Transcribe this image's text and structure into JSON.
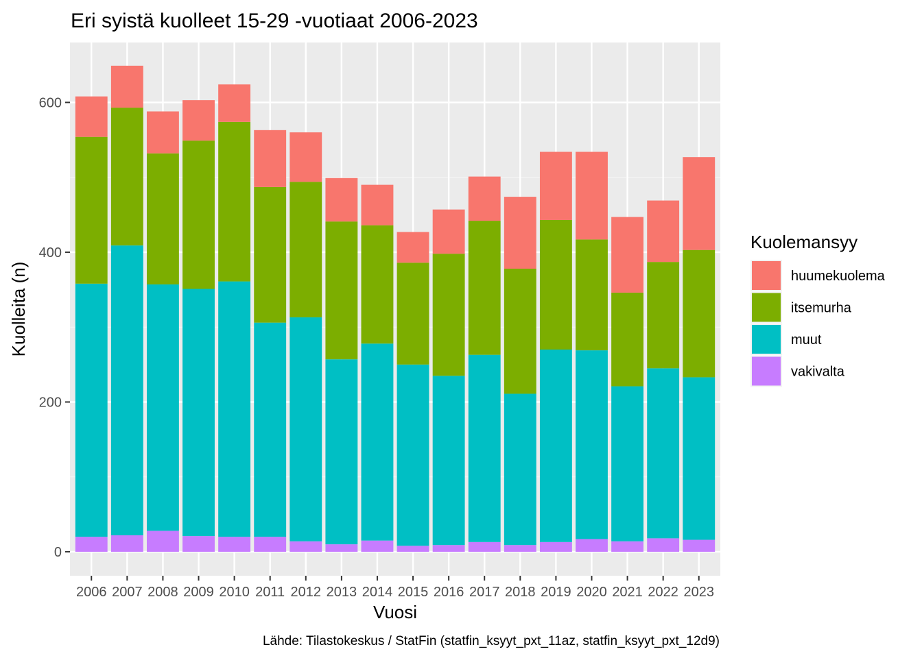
{
  "chart_data": {
    "type": "bar",
    "stacked": true,
    "title": "Eri syistä kuolleet 15-29 -vuotiaat 2006-2023",
    "xlabel": "Vuosi",
    "ylabel": "Kuolleita (n)",
    "caption": "Lähde: Tilastokeskus / StatFin (statfin_ksyyt_pxt_11az, statfin_ksyyt_pxt_12d9)",
    "ylim": [
      -32,
      680
    ],
    "yticks": [
      0,
      200,
      400,
      600
    ],
    "grid": true,
    "legend": {
      "title": "Kuolemansyy",
      "position": "right"
    },
    "categories": [
      "2006",
      "2007",
      "2008",
      "2009",
      "2010",
      "2011",
      "2012",
      "2013",
      "2014",
      "2015",
      "2016",
      "2017",
      "2018",
      "2019",
      "2020",
      "2021",
      "2022",
      "2023"
    ],
    "series": [
      {
        "name": "vakivalta",
        "color": "#C77CFF",
        "values": [
          20,
          22,
          28,
          21,
          20,
          20,
          14,
          10,
          15,
          8,
          9,
          13,
          9,
          13,
          17,
          14,
          18,
          16
        ]
      },
      {
        "name": "muut",
        "color": "#00BFC4",
        "values": [
          338,
          387,
          329,
          330,
          341,
          286,
          299,
          247,
          263,
          242,
          226,
          250,
          202,
          257,
          252,
          207,
          227,
          217
        ]
      },
      {
        "name": "itsemurha",
        "color": "#7CAE00",
        "values": [
          196,
          184,
          175,
          198,
          213,
          181,
          181,
          184,
          158,
          136,
          163,
          179,
          167,
          173,
          148,
          125,
          142,
          170
        ]
      },
      {
        "name": "huumekuolema",
        "color": "#F8766D",
        "values": [
          54,
          56,
          56,
          54,
          50,
          76,
          66,
          58,
          54,
          41,
          59,
          59,
          96,
          91,
          117,
          101,
          82,
          124
        ]
      }
    ],
    "legend_order": [
      "huumekuolema",
      "itsemurha",
      "muut",
      "vakivalta"
    ]
  }
}
